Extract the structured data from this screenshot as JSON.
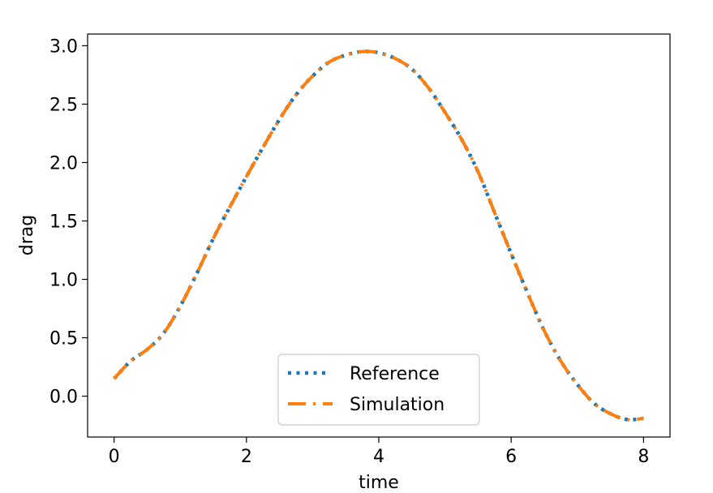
{
  "chart_data": {
    "type": "line",
    "xlabel": "time",
    "ylabel": "drag",
    "xlim": [
      -0.4,
      8.4
    ],
    "ylim": [
      -0.35,
      3.1
    ],
    "xticks": [
      "0",
      "2",
      "4",
      "6",
      "8"
    ],
    "yticks": [
      "0.0",
      "0.5",
      "1.0",
      "1.5",
      "2.0",
      "2.5",
      "3.0"
    ],
    "grid": false,
    "legend_position": "bottom-center",
    "series": [
      {
        "name": "Reference",
        "style": "dotted",
        "color": "#1f77b4",
        "x": [
          0,
          0.25,
          0.5,
          0.75,
          1.0,
          1.25,
          1.5,
          1.75,
          2.0,
          2.25,
          2.5,
          2.75,
          3.0,
          3.25,
          3.5,
          3.75,
          4.0,
          4.25,
          4.5,
          4.75,
          5.0,
          5.25,
          5.5,
          5.75,
          6.0,
          6.25,
          6.5,
          6.75,
          7.0,
          7.25,
          7.5,
          7.75,
          8.0
        ],
        "y": [
          0.15,
          0.3,
          0.4,
          0.54,
          0.77,
          1.05,
          1.35,
          1.62,
          1.88,
          2.13,
          2.37,
          2.58,
          2.74,
          2.86,
          2.92,
          2.95,
          2.94,
          2.89,
          2.8,
          2.64,
          2.43,
          2.2,
          1.92,
          1.57,
          1.22,
          0.88,
          0.56,
          0.3,
          0.1,
          -0.06,
          -0.15,
          -0.2,
          -0.19
        ]
      },
      {
        "name": "Simulation",
        "style": "dashdot",
        "color": "#ff7f0e",
        "x": [
          0,
          0.25,
          0.5,
          0.75,
          1.0,
          1.25,
          1.5,
          1.75,
          2.0,
          2.25,
          2.5,
          2.75,
          3.0,
          3.25,
          3.5,
          3.75,
          4.0,
          4.25,
          4.5,
          4.75,
          5.0,
          5.25,
          5.5,
          5.75,
          6.0,
          6.25,
          6.5,
          6.75,
          7.0,
          7.25,
          7.5,
          7.75,
          8.0
        ],
        "y": [
          0.15,
          0.3,
          0.4,
          0.54,
          0.77,
          1.05,
          1.35,
          1.62,
          1.88,
          2.13,
          2.37,
          2.58,
          2.74,
          2.86,
          2.92,
          2.95,
          2.94,
          2.89,
          2.8,
          2.64,
          2.43,
          2.2,
          1.92,
          1.57,
          1.22,
          0.88,
          0.56,
          0.3,
          0.1,
          -0.06,
          -0.15,
          -0.2,
          -0.19
        ]
      }
    ]
  }
}
